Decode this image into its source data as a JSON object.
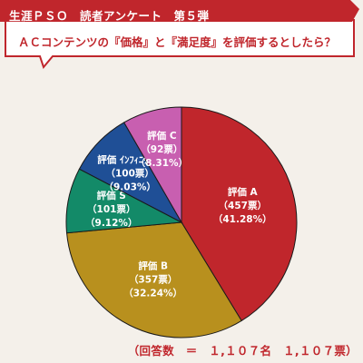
{
  "header": {
    "title": "生涯ＰＳＯ　読者アンケート　第５弾",
    "question": "ＡＣコンテンツの『価格』と『満足度』を評価するとしたら？"
  },
  "footer": {
    "total": "（回答数　＝　１,１０７名　１,１０７票）"
  },
  "chart_data": {
    "type": "pie",
    "title": "",
    "start_angle_deg": 0,
    "direction": "clockwise",
    "slices": [
      {
        "name": "評価 A",
        "votes_label": "（457票）",
        "percent_label": "（41.28%）",
        "votes": 457,
        "percent": 41.28,
        "color": "#c0262c"
      },
      {
        "name": "評価 B",
        "votes_label": "（357票）",
        "percent_label": "（32.24%）",
        "votes": 357,
        "percent": 32.24,
        "color": "#b8901e"
      },
      {
        "name": "評価 S",
        "votes_label": "（101票）",
        "percent_label": "（9.12%）",
        "votes": 101,
        "percent": 9.12,
        "color": "#138a68"
      },
      {
        "name": "評価 ｲﾝﾌｨﾆｯﾃｨｰ",
        "votes_label": "（100票）",
        "percent_label": "（9.03%）",
        "votes": 100,
        "percent": 9.03,
        "color": "#1f4f96"
      },
      {
        "name": "評価 C",
        "votes_label": "（92票）",
        "percent_label": "（8.31%）",
        "votes": 92,
        "percent": 8.31,
        "color": "#c85fb0"
      }
    ]
  }
}
